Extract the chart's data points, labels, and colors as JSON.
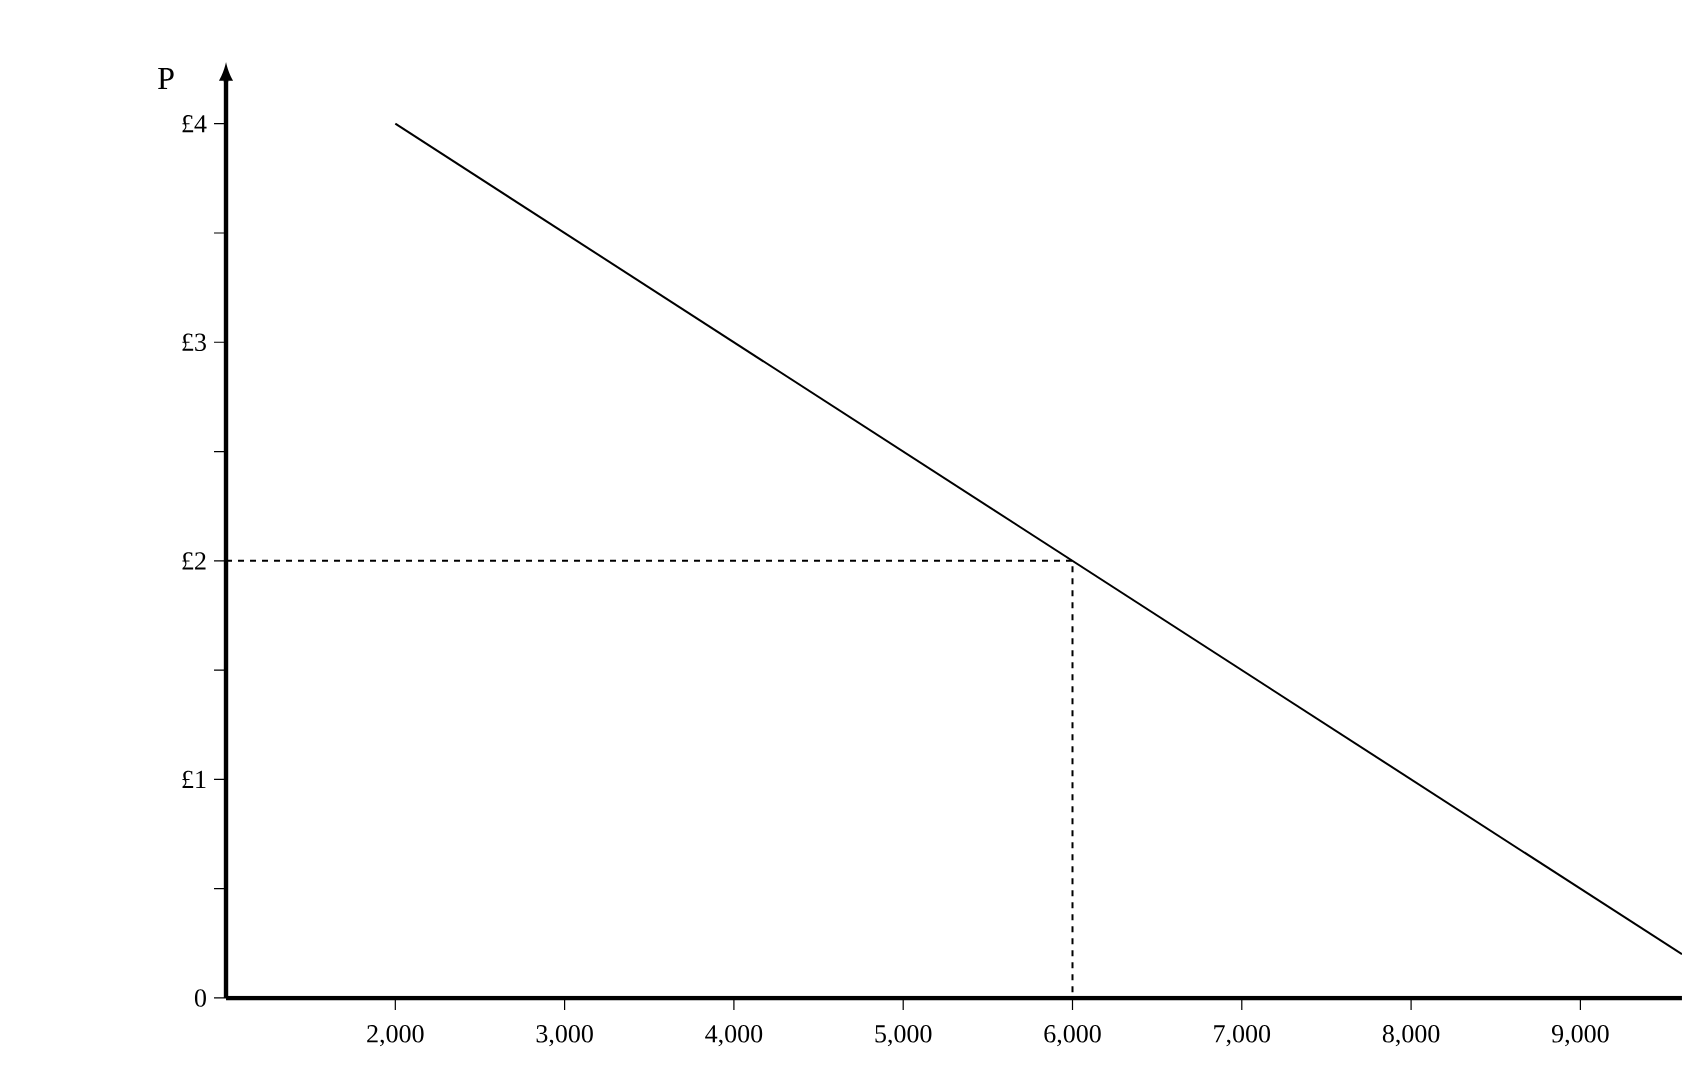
{
  "chart_data": {
    "type": "line",
    "ylabel": "P",
    "xlim": [
      1000,
      9600
    ],
    "ylim": [
      0,
      4.2
    ],
    "xticks": [
      {
        "value": 2000,
        "label": "2,000"
      },
      {
        "value": 3000,
        "label": "3,000"
      },
      {
        "value": 4000,
        "label": "4,000"
      },
      {
        "value": 5000,
        "label": "5,000"
      },
      {
        "value": 6000,
        "label": "6,000"
      },
      {
        "value": 7000,
        "label": "7,000"
      },
      {
        "value": 8000,
        "label": "8,000"
      },
      {
        "value": 9000,
        "label": "9,000"
      }
    ],
    "yticks": [
      {
        "value": 0,
        "label": "0"
      },
      {
        "value": 0.5,
        "label": null
      },
      {
        "value": 1,
        "label": "£1"
      },
      {
        "value": 1.5,
        "label": null
      },
      {
        "value": 2,
        "label": "£2"
      },
      {
        "value": 2.5,
        "label": null
      },
      {
        "value": 3,
        "label": "£3"
      },
      {
        "value": 3.5,
        "label": null
      },
      {
        "value": 4,
        "label": "£4"
      }
    ],
    "series": [
      {
        "color": "#000000",
        "line_style": "solid",
        "x": [
          2000,
          9600
        ],
        "values": [
          4,
          0.2
        ]
      },
      {
        "color": "#000000",
        "line_style": "dashed",
        "x": [
          1000,
          6000,
          6000
        ],
        "values": [
          2,
          2,
          0
        ]
      }
    ]
  }
}
